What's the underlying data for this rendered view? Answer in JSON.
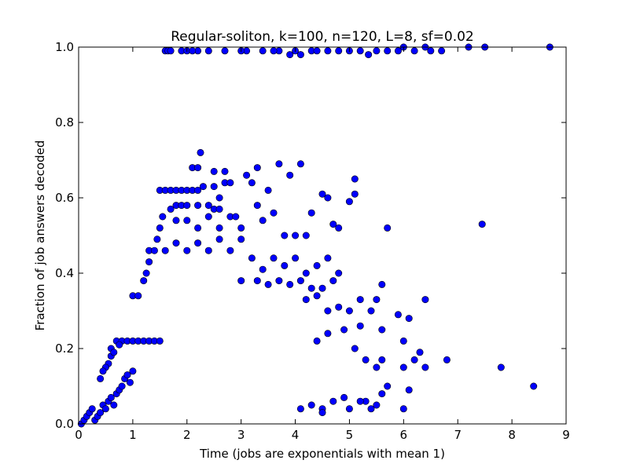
{
  "chart_data": {
    "type": "scatter",
    "title": "Regular-soliton, k=100, n=120, L=8, sf=0.02",
    "xlabel": "Time (jobs are exponentials with mean 1)",
    "ylabel": "Fraction of job answers decoded",
    "xlim": [
      0,
      9
    ],
    "ylim": [
      0,
      1.0
    ],
    "xticks": [
      "0",
      "1",
      "2",
      "3",
      "4",
      "5",
      "6",
      "7",
      "8",
      "9"
    ],
    "yticks": [
      "0.0",
      "0.2",
      "0.4",
      "0.6",
      "0.8",
      "1.0"
    ],
    "grid": false,
    "marker_color": "#0000ff",
    "marker_edge": "#000000",
    "points": [
      [
        0.05,
        0.0
      ],
      [
        0.1,
        0.01
      ],
      [
        0.15,
        0.02
      ],
      [
        0.2,
        0.03
      ],
      [
        0.25,
        0.04
      ],
      [
        0.3,
        0.01
      ],
      [
        0.35,
        0.02
      ],
      [
        0.4,
        0.03
      ],
      [
        0.45,
        0.05
      ],
      [
        0.5,
        0.04
      ],
      [
        0.55,
        0.06
      ],
      [
        0.6,
        0.07
      ],
      [
        0.65,
        0.05
      ],
      [
        0.7,
        0.08
      ],
      [
        0.75,
        0.09
      ],
      [
        0.8,
        0.1
      ],
      [
        0.85,
        0.12
      ],
      [
        0.9,
        0.13
      ],
      [
        0.95,
        0.11
      ],
      [
        1.0,
        0.14
      ],
      [
        0.6,
        0.2
      ],
      [
        0.7,
        0.22
      ],
      [
        0.8,
        0.22
      ],
      [
        0.9,
        0.22
      ],
      [
        1.0,
        0.22
      ],
      [
        1.1,
        0.22
      ],
      [
        1.2,
        0.22
      ],
      [
        1.3,
        0.22
      ],
      [
        1.4,
        0.22
      ],
      [
        1.5,
        0.22
      ],
      [
        0.55,
        0.16
      ],
      [
        0.6,
        0.18
      ],
      [
        0.65,
        0.19
      ],
      [
        0.75,
        0.21
      ],
      [
        0.5,
        0.15
      ],
      [
        0.45,
        0.14
      ],
      [
        0.4,
        0.12
      ],
      [
        1.0,
        0.34
      ],
      [
        1.1,
        0.34
      ],
      [
        1.2,
        0.38
      ],
      [
        1.25,
        0.4
      ],
      [
        1.3,
        0.43
      ],
      [
        1.3,
        0.46
      ],
      [
        1.4,
        0.46
      ],
      [
        1.45,
        0.49
      ],
      [
        1.5,
        0.52
      ],
      [
        1.55,
        0.55
      ],
      [
        1.5,
        0.62
      ],
      [
        1.6,
        0.62
      ],
      [
        1.7,
        0.62
      ],
      [
        1.8,
        0.62
      ],
      [
        1.9,
        0.62
      ],
      [
        2.0,
        0.62
      ],
      [
        2.1,
        0.62
      ],
      [
        2.2,
        0.62
      ],
      [
        1.7,
        0.57
      ],
      [
        1.8,
        0.58
      ],
      [
        1.9,
        0.58
      ],
      [
        2.0,
        0.58
      ],
      [
        2.2,
        0.58
      ],
      [
        2.4,
        0.58
      ],
      [
        2.5,
        0.57
      ],
      [
        2.6,
        0.57
      ],
      [
        1.8,
        0.54
      ],
      [
        2.0,
        0.54
      ],
      [
        2.2,
        0.52
      ],
      [
        2.4,
        0.55
      ],
      [
        2.6,
        0.52
      ],
      [
        2.8,
        0.55
      ],
      [
        1.6,
        0.46
      ],
      [
        1.8,
        0.48
      ],
      [
        2.0,
        0.46
      ],
      [
        2.2,
        0.48
      ],
      [
        2.4,
        0.46
      ],
      [
        2.6,
        0.49
      ],
      [
        2.8,
        0.46
      ],
      [
        3.0,
        0.49
      ],
      [
        2.25,
        0.72
      ],
      [
        2.1,
        0.68
      ],
      [
        2.2,
        0.68
      ],
      [
        2.5,
        0.67
      ],
      [
        2.7,
        0.67
      ],
      [
        2.3,
        0.63
      ],
      [
        2.5,
        0.63
      ],
      [
        2.7,
        0.64
      ],
      [
        2.6,
        0.6
      ],
      [
        2.8,
        0.64
      ],
      [
        2.9,
        0.55
      ],
      [
        3.1,
        0.66
      ],
      [
        3.2,
        0.64
      ],
      [
        3.3,
        0.68
      ],
      [
        3.5,
        0.62
      ],
      [
        3.7,
        0.69
      ],
      [
        3.9,
        0.66
      ],
      [
        4.1,
        0.69
      ],
      [
        3.3,
        0.58
      ],
      [
        3.6,
        0.56
      ],
      [
        3.0,
        0.52
      ],
      [
        3.4,
        0.54
      ],
      [
        3.8,
        0.5
      ],
      [
        4.0,
        0.5
      ],
      [
        4.2,
        0.5
      ],
      [
        4.3,
        0.56
      ],
      [
        4.5,
        0.61
      ],
      [
        4.6,
        0.6
      ],
      [
        4.7,
        0.53
      ],
      [
        4.8,
        0.52
      ],
      [
        5.1,
        0.65
      ],
      [
        5.1,
        0.61
      ],
      [
        5.0,
        0.59
      ],
      [
        5.7,
        0.52
      ],
      [
        7.45,
        0.53
      ],
      [
        3.2,
        0.44
      ],
      [
        3.4,
        0.41
      ],
      [
        3.6,
        0.44
      ],
      [
        3.8,
        0.42
      ],
      [
        4.0,
        0.44
      ],
      [
        4.2,
        0.4
      ],
      [
        4.4,
        0.42
      ],
      [
        4.6,
        0.44
      ],
      [
        4.8,
        0.4
      ],
      [
        3.0,
        0.38
      ],
      [
        3.3,
        0.38
      ],
      [
        3.5,
        0.37
      ],
      [
        3.7,
        0.38
      ],
      [
        3.9,
        0.37
      ],
      [
        4.1,
        0.38
      ],
      [
        4.3,
        0.36
      ],
      [
        4.5,
        0.36
      ],
      [
        4.7,
        0.38
      ],
      [
        4.2,
        0.33
      ],
      [
        4.4,
        0.34
      ],
      [
        4.6,
        0.3
      ],
      [
        4.8,
        0.31
      ],
      [
        5.0,
        0.3
      ],
      [
        5.2,
        0.33
      ],
      [
        5.5,
        0.33
      ],
      [
        5.4,
        0.3
      ],
      [
        5.6,
        0.37
      ],
      [
        5.9,
        0.29
      ],
      [
        6.1,
        0.28
      ],
      [
        6.4,
        0.33
      ],
      [
        5.2,
        0.26
      ],
      [
        5.6,
        0.25
      ],
      [
        6.0,
        0.22
      ],
      [
        6.3,
        0.19
      ],
      [
        6.8,
        0.17
      ],
      [
        4.4,
        0.22
      ],
      [
        4.6,
        0.24
      ],
      [
        4.9,
        0.25
      ],
      [
        5.1,
        0.2
      ],
      [
        5.3,
        0.17
      ],
      [
        5.5,
        0.15
      ],
      [
        5.6,
        0.17
      ],
      [
        6.0,
        0.15
      ],
      [
        6.2,
        0.17
      ],
      [
        6.4,
        0.15
      ],
      [
        7.8,
        0.15
      ],
      [
        8.4,
        0.1
      ],
      [
        5.7,
        0.1
      ],
      [
        5.6,
        0.08
      ],
      [
        5.5,
        0.05
      ],
      [
        5.4,
        0.04
      ],
      [
        5.3,
        0.06
      ],
      [
        5.2,
        0.06
      ],
      [
        6.0,
        0.04
      ],
      [
        6.1,
        0.09
      ],
      [
        5.0,
        0.04
      ],
      [
        4.9,
        0.07
      ],
      [
        4.7,
        0.06
      ],
      [
        4.5,
        0.04
      ],
      [
        4.3,
        0.05
      ],
      [
        4.1,
        0.04
      ],
      [
        4.5,
        0.03
      ],
      [
        5.2,
        0.99
      ],
      [
        5.0,
        0.99
      ],
      [
        4.6,
        0.99
      ],
      [
        4.3,
        0.99
      ],
      [
        4.0,
        0.99
      ],
      [
        3.7,
        0.99
      ],
      [
        3.4,
        0.99
      ],
      [
        3.1,
        0.99
      ],
      [
        2.7,
        0.99
      ],
      [
        2.4,
        0.99
      ],
      [
        2.2,
        0.99
      ],
      [
        1.6,
        0.99
      ],
      [
        1.65,
        0.99
      ],
      [
        1.7,
        0.99
      ],
      [
        1.9,
        0.99
      ],
      [
        2.0,
        0.99
      ],
      [
        2.1,
        0.99
      ],
      [
        4.1,
        0.98
      ],
      [
        3.9,
        0.98
      ],
      [
        5.35,
        0.98
      ],
      [
        5.5,
        0.99
      ],
      [
        5.7,
        0.99
      ],
      [
        5.9,
        0.99
      ],
      [
        6.2,
        0.99
      ],
      [
        6.5,
        0.99
      ],
      [
        6.7,
        0.99
      ],
      [
        7.2,
        1.0
      ],
      [
        7.5,
        1.0
      ],
      [
        8.7,
        1.0
      ],
      [
        6.0,
        1.0
      ],
      [
        6.4,
        1.0
      ],
      [
        4.8,
        0.99
      ],
      [
        4.4,
        0.99
      ],
      [
        3.6,
        0.99
      ],
      [
        3.0,
        0.99
      ]
    ]
  }
}
